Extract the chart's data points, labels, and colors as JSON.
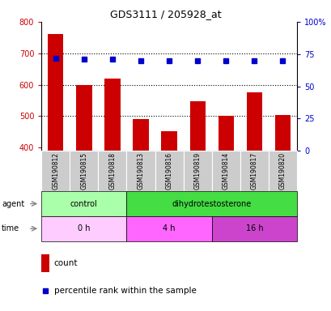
{
  "title": "GDS3111 / 205928_at",
  "samples": [
    "GSM190812",
    "GSM190815",
    "GSM190818",
    "GSM190813",
    "GSM190816",
    "GSM190819",
    "GSM190814",
    "GSM190817",
    "GSM190820"
  ],
  "counts": [
    762,
    600,
    620,
    490,
    453,
    548,
    502,
    575,
    504
  ],
  "percentiles": [
    72,
    71,
    71,
    70,
    70,
    70,
    70,
    70,
    70
  ],
  "ylim_left": [
    390,
    800
  ],
  "ylim_right": [
    0,
    100
  ],
  "yticks_left": [
    400,
    500,
    600,
    700,
    800
  ],
  "yticks_right": [
    0,
    25,
    50,
    75,
    100
  ],
  "bar_color": "#cc0000",
  "dot_color": "#0000cc",
  "agent_control_color": "#aaffaa",
  "agent_dihydro_color": "#44dd44",
  "time_0h_color": "#ffccff",
  "time_4h_color": "#ff66ff",
  "time_16h_color": "#cc44cc",
  "sample_bg_color": "#cccccc",
  "agent_row": [
    {
      "label": "control",
      "span": [
        0,
        3
      ]
    },
    {
      "label": "dihydrotestosterone",
      "span": [
        3,
        9
      ]
    }
  ],
  "time_row": [
    {
      "label": "0 h",
      "span": [
        0,
        3
      ]
    },
    {
      "label": "4 h",
      "span": [
        3,
        6
      ]
    },
    {
      "label": "16 h",
      "span": [
        6,
        9
      ]
    }
  ],
  "left_label_color": "#cc0000",
  "right_label_color": "#0000cc",
  "grid_yticks": [
    500,
    600,
    700
  ],
  "bar_width": 0.55
}
